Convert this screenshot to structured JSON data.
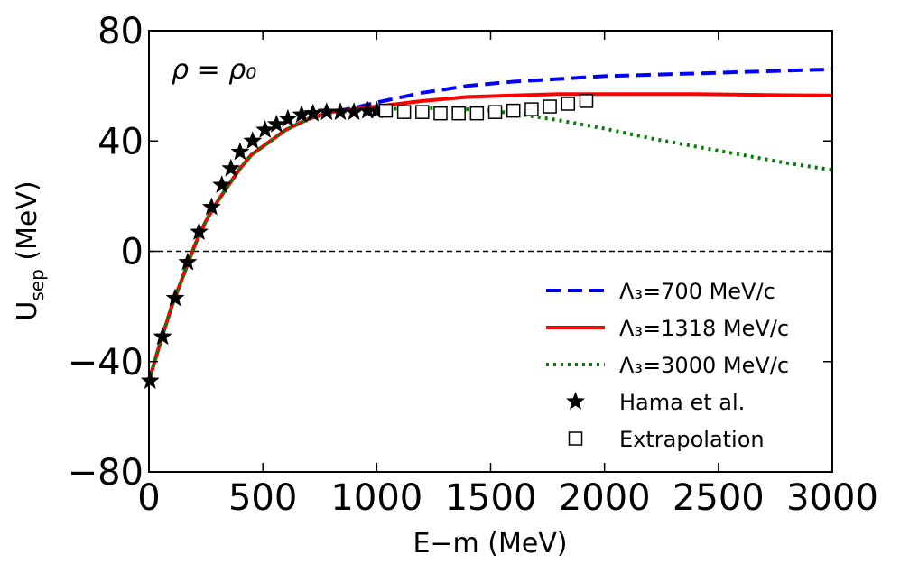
{
  "chart_data": {
    "type": "line",
    "annotation": "ρ = ρ₀",
    "xlabel": "E−m  (MeV)",
    "ylabel_main": "U",
    "ylabel_sub": "sep",
    "ylabel_unit": "  (MeV)",
    "xlim": [
      0,
      3000
    ],
    "ylim": [
      -80,
      80
    ],
    "xticks": [
      0,
      500,
      1000,
      1500,
      2000,
      2500,
      3000
    ],
    "yticks": [
      -80,
      -40,
      0,
      40,
      80
    ],
    "ytick_labels": [
      "−80",
      "−40",
      "0",
      "40",
      "80"
    ],
    "zero_line": true,
    "legend_position": "lower-right",
    "series": [
      {
        "name": "Λ₃=700 MeV/c",
        "color": "#0000ff",
        "style": "dashed",
        "x": [
          0,
          50,
          100,
          150,
          200,
          250,
          300,
          350,
          400,
          450,
          500,
          600,
          700,
          800,
          900,
          1000,
          1200,
          1400,
          1600,
          1800,
          2000,
          2200,
          2400,
          2600,
          2800,
          3000
        ],
        "y": [
          -47,
          -33,
          -20,
          -9,
          2,
          11,
          18,
          24,
          30,
          35,
          38,
          44,
          48,
          50.5,
          52,
          54,
          57.5,
          60,
          61.5,
          62.5,
          63.5,
          64,
          64.5,
          65,
          65.5,
          66
        ]
      },
      {
        "name": "Λ₃=1318 MeV/c",
        "color": "#ff0000",
        "style": "solid",
        "x": [
          0,
          50,
          100,
          150,
          200,
          250,
          300,
          350,
          400,
          450,
          500,
          600,
          700,
          800,
          900,
          1000,
          1200,
          1400,
          1600,
          1800,
          2000,
          2200,
          2400,
          2600,
          2800,
          3000
        ],
        "y": [
          -47,
          -33,
          -20,
          -9,
          2,
          11,
          18,
          24,
          30,
          35,
          38,
          44,
          48,
          50.5,
          51.5,
          52.5,
          54.5,
          56,
          56.5,
          57,
          57,
          57,
          57,
          56.8,
          56.6,
          56.5
        ]
      },
      {
        "name": "Λ₃=3000 MeV/c",
        "color": "#008000",
        "style": "dotted",
        "x": [
          0,
          50,
          100,
          150,
          200,
          250,
          300,
          350,
          400,
          450,
          500,
          600,
          700,
          800,
          900,
          1000,
          1200,
          1400,
          1500,
          1600,
          1800,
          2000,
          2200,
          2400,
          2600,
          2800,
          3000
        ],
        "y": [
          -47,
          -33,
          -20,
          -9,
          2,
          11,
          18,
          24,
          30,
          35,
          38,
          44,
          48,
          50,
          51,
          51.5,
          52,
          51.5,
          51,
          50,
          47.5,
          44.5,
          41,
          38,
          35,
          32,
          29.5
        ]
      },
      {
        "name": "Hama et al.",
        "color": "#000000",
        "marker": "star",
        "x": [
          5,
          60,
          115,
          170,
          220,
          275,
          320,
          360,
          400,
          455,
          510,
          560,
          610,
          670,
          720,
          780,
          840,
          900,
          960,
          1000
        ],
        "y": [
          -47,
          -31,
          -17,
          -4,
          7,
          16,
          24,
          30,
          36,
          40,
          44,
          46,
          48,
          49.5,
          50,
          50.5,
          50.5,
          50.5,
          51,
          51
        ]
      },
      {
        "name": "Extrapolation",
        "color": "#000000",
        "marker": "square",
        "x": [
          1040,
          1120,
          1200,
          1280,
          1360,
          1440,
          1520,
          1600,
          1680,
          1760,
          1840,
          1920
        ],
        "y": [
          51,
          50.5,
          50.5,
          50,
          50,
          50,
          50.5,
          51,
          51.5,
          52.5,
          53.5,
          54.5
        ]
      }
    ]
  }
}
